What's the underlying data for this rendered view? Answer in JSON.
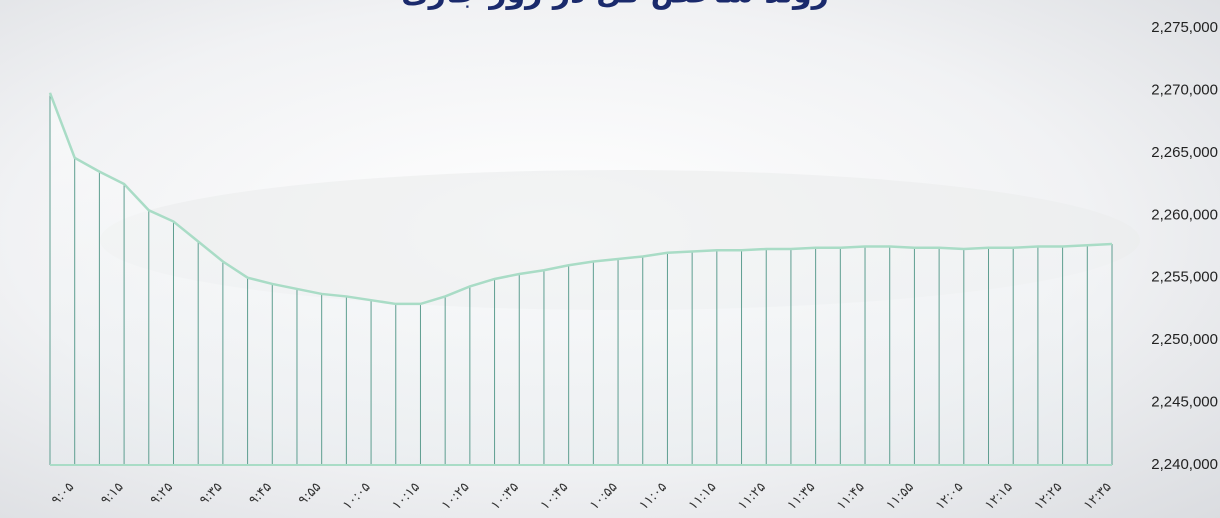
{
  "chart_data": {
    "type": "line",
    "title": "روند شاخص کل در روز جاری",
    "categories": [
      "۹:۰۵",
      null,
      "۹:۱۵",
      null,
      "۹:۲۵",
      null,
      "۹:۳۵",
      null,
      "۹:۴۵",
      null,
      "۹:۵۵",
      null,
      "۱۰:۰۵",
      null,
      "۱۰:۱۵",
      null,
      "۱۰:۲۵",
      null,
      "۱۰:۳۵",
      null,
      "۱۰:۴۵",
      null,
      "۱۰:۵۵",
      null,
      "۱۱:۰۵",
      null,
      "۱۱:۱۵",
      null,
      "۱۱:۲۵",
      null,
      "۱۱:۳۵",
      null,
      "۱۱:۴۵",
      null,
      "۱۱:۵۵",
      null,
      "۱۲:۰۵",
      null,
      "۱۲:۱۵",
      null,
      "۱۲:۲۵",
      null,
      "۱۲:۳۵",
      null
    ],
    "values": [
      2269800,
      2264600,
      2263500,
      2262500,
      2260400,
      2259500,
      2257900,
      2256300,
      2255000,
      2254500,
      2254100,
      2253700,
      2253500,
      2253200,
      2252900,
      2252900,
      2253500,
      2254300,
      2254900,
      2255300,
      2255600,
      2256000,
      2256300,
      2256500,
      2256700,
      2257000,
      2257100,
      2257200,
      2257200,
      2257300,
      2257300,
      2257400,
      2257400,
      2257500,
      2257500,
      2257400,
      2257400,
      2257300,
      2257400,
      2257400,
      2257500,
      2257500,
      2257600,
      2257700
    ],
    "color": "#a9dcc6",
    "drop_color": "#5e9e90",
    "ylim": [
      2240000,
      2275000
    ],
    "yticks": [
      {
        "value": 2240000,
        "label": "2,240,000"
      },
      {
        "value": 2245000,
        "label": "2,245,000"
      },
      {
        "value": 2250000,
        "label": "2,250,000"
      },
      {
        "value": 2255000,
        "label": "2,255,000"
      },
      {
        "value": 2260000,
        "label": "2,260,000"
      },
      {
        "value": 2265000,
        "label": "2,265,000"
      },
      {
        "value": 2270000,
        "label": "2,270,000"
      },
      {
        "value": 2275000,
        "label": "2,275,000"
      }
    ]
  }
}
